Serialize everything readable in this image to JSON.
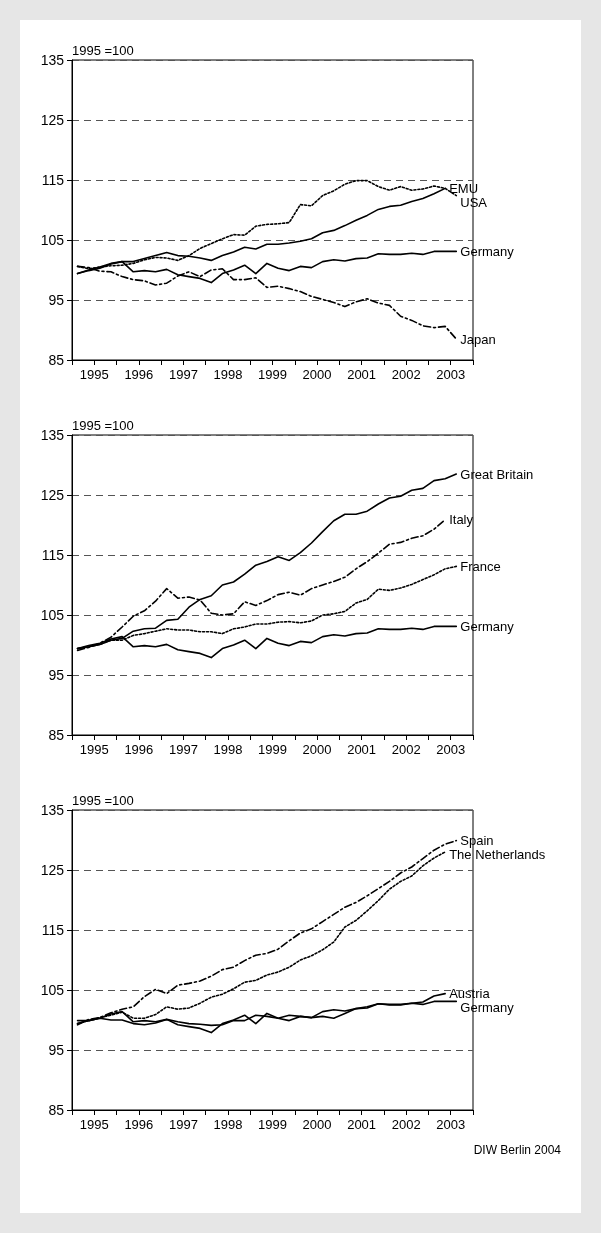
{
  "chart_data": [
    {
      "type": "line",
      "ylabel": "1995 =100",
      "xlim": [
        1995,
        2004
      ],
      "xticks": [
        {
          "value": 1995,
          "label": null
        },
        {
          "value": 1995.5,
          "label": "1995"
        },
        {
          "value": 1996,
          "label": null
        },
        {
          "value": 1996.5,
          "label": "1996"
        },
        {
          "value": 1997,
          "label": null
        },
        {
          "value": 1997.5,
          "label": "1997"
        },
        {
          "value": 1998,
          "label": null
        },
        {
          "value": 1998.5,
          "label": "1998"
        },
        {
          "value": 1999,
          "label": null
        },
        {
          "value": 1999.5,
          "label": "1999"
        },
        {
          "value": 2000,
          "label": null
        },
        {
          "value": 2000.5,
          "label": "2000"
        },
        {
          "value": 2001,
          "label": null
        },
        {
          "value": 2001.5,
          "label": "2001"
        },
        {
          "value": 2002,
          "label": null
        },
        {
          "value": 2002.5,
          "label": "2002"
        },
        {
          "value": 2003,
          "label": null
        },
        {
          "value": 2003.5,
          "label": "2003"
        },
        {
          "value": 2004,
          "label": null
        }
      ],
      "ylim": [
        85,
        135
      ],
      "yticks": [
        85,
        95,
        105,
        115,
        125,
        135
      ],
      "grid": "y",
      "legend": false,
      "marker": "none",
      "x": [
        1995.125,
        1995.375,
        1995.625,
        1995.875,
        1996.125,
        1996.375,
        1996.625,
        1996.875,
        1997.125,
        1997.375,
        1997.625,
        1997.875,
        1998.125,
        1998.375,
        1998.625,
        1998.875,
        1999.125,
        1999.375,
        1999.625,
        1999.875,
        2000.125,
        2000.375,
        2000.625,
        2000.875,
        2001.125,
        2001.375,
        2001.625,
        2001.875,
        2002.125,
        2002.375,
        2002.625,
        2002.875,
        2003.125,
        2003.375,
        2003.625
      ],
      "series": [
        {
          "name": "USA",
          "color": "#000000",
          "line_style": "dotted",
          "values": [
            100.6,
            100.2,
            100.5,
            100.7,
            100.8,
            101.1,
            101.7,
            102.1,
            102,
            101.6,
            102.4,
            103.6,
            104.4,
            105.2,
            105.9,
            105.8,
            107.3,
            107.6,
            107.7,
            107.9,
            110.9,
            110.7,
            112.4,
            113.2,
            114.3,
            114.9,
            114.9,
            113.9,
            113.3,
            113.9,
            113.3,
            113.5,
            114,
            113.6,
            112.4
          ]
        },
        {
          "name": "EMU",
          "color": "#000000",
          "line_style": "solid",
          "values": [
            99.4,
            100,
            100.5,
            101.1,
            101.4,
            101.4,
            101.9,
            102.4,
            102.9,
            102.4,
            102.3,
            102,
            101.6,
            102.4,
            103,
            103.8,
            103.5,
            104.3,
            104.3,
            104.5,
            104.8,
            105.2,
            106.2,
            106.6,
            107.4,
            108.3,
            109.1,
            110.1,
            110.6,
            110.8,
            111.4,
            111.9,
            112.7,
            113.6,
            null
          ]
        },
        {
          "name": "Germany",
          "color": "#000000",
          "line_style": "solid",
          "values": [
            99.4,
            99.9,
            100.3,
            101,
            101.4,
            99.7,
            99.9,
            99.7,
            100.1,
            99.2,
            98.9,
            98.6,
            97.9,
            99.4,
            100,
            100.8,
            99.4,
            101.1,
            100.3,
            99.9,
            100.6,
            100.4,
            101.4,
            101.7,
            101.5,
            101.9,
            102,
            102.7,
            102.6,
            102.6,
            102.8,
            102.6,
            103.1,
            103.1,
            103.1
          ]
        },
        {
          "name": "Japan",
          "color": "#000000",
          "line_style": "dashed",
          "values": [
            100.6,
            100.4,
            99.8,
            99.7,
            98.9,
            98.4,
            98.2,
            97.5,
            97.8,
            99,
            99.7,
            98.9,
            100,
            100.2,
            98.4,
            98.4,
            98.7,
            97.1,
            97.3,
            96.9,
            96.4,
            95.6,
            95.1,
            94.6,
            93.9,
            94.7,
            95.2,
            94.5,
            94.1,
            92.3,
            91.6,
            90.7,
            90.4,
            90.6,
            88.5
          ]
        }
      ]
    },
    {
      "type": "line",
      "ylabel": "1995 =100",
      "xlim": [
        1995,
        2004
      ],
      "xticks": [
        {
          "value": 1995,
          "label": null
        },
        {
          "value": 1995.5,
          "label": "1995"
        },
        {
          "value": 1996,
          "label": null
        },
        {
          "value": 1996.5,
          "label": "1996"
        },
        {
          "value": 1997,
          "label": null
        },
        {
          "value": 1997.5,
          "label": "1997"
        },
        {
          "value": 1998,
          "label": null
        },
        {
          "value": 1998.5,
          "label": "1998"
        },
        {
          "value": 1999,
          "label": null
        },
        {
          "value": 1999.5,
          "label": "1999"
        },
        {
          "value": 2000,
          "label": null
        },
        {
          "value": 2000.5,
          "label": "2000"
        },
        {
          "value": 2001,
          "label": null
        },
        {
          "value": 2001.5,
          "label": "2001"
        },
        {
          "value": 2002,
          "label": null
        },
        {
          "value": 2002.5,
          "label": "2002"
        },
        {
          "value": 2003,
          "label": null
        },
        {
          "value": 2003.5,
          "label": "2003"
        },
        {
          "value": 2004,
          "label": null
        }
      ],
      "ylim": [
        85,
        135
      ],
      "yticks": [
        85,
        95,
        105,
        115,
        125,
        135
      ],
      "grid": "y",
      "legend": false,
      "marker": "none",
      "x": [
        1995.125,
        1995.375,
        1995.625,
        1995.875,
        1996.125,
        1996.375,
        1996.625,
        1996.875,
        1997.125,
        1997.375,
        1997.625,
        1997.875,
        1998.125,
        1998.375,
        1998.625,
        1998.875,
        1999.125,
        1999.375,
        1999.625,
        1999.875,
        2000.125,
        2000.375,
        2000.625,
        2000.875,
        2001.125,
        2001.375,
        2001.625,
        2001.875,
        2002.125,
        2002.375,
        2002.625,
        2002.875,
        2003.125,
        2003.375,
        2003.625
      ],
      "series": [
        {
          "name": "Great Britain",
          "color": "#000000",
          "line_style": "solid",
          "values": [
            99.4,
            99.7,
            100.1,
            100.8,
            101.1,
            102.3,
            102.7,
            102.8,
            104.1,
            104.3,
            106.3,
            107.6,
            108.2,
            110,
            110.5,
            111.8,
            113.3,
            113.9,
            114.7,
            114.1,
            115.4,
            117,
            118.9,
            120.7,
            121.8,
            121.8,
            122.3,
            123.5,
            124.5,
            124.8,
            125.8,
            126.1,
            127.4,
            127.7,
            128.5
          ]
        },
        {
          "name": "Italy",
          "color": "#000000",
          "line_style": "dashed",
          "values": [
            99.1,
            99.6,
            100.3,
            101.3,
            103,
            104.8,
            105.7,
            107.3,
            109.4,
            107.8,
            108,
            107.5,
            105.3,
            105,
            105.2,
            107.2,
            106.6,
            107.4,
            108.4,
            108.8,
            108.3,
            109.4,
            110,
            110.6,
            111.3,
            112.7,
            113.9,
            115.3,
            116.8,
            117.1,
            117.8,
            118.2,
            119.3,
            120.9,
            null
          ]
        },
        {
          "name": "France",
          "color": "#000000",
          "line_style": "dotted",
          "values": [
            99.4,
            99.7,
            100.1,
            100.8,
            100.8,
            101.6,
            101.9,
            102.3,
            102.7,
            102.5,
            102.5,
            102.2,
            102.2,
            101.9,
            102.7,
            103,
            103.5,
            103.5,
            103.8,
            103.9,
            103.7,
            104,
            105,
            105.2,
            105.6,
            107,
            107.6,
            109.3,
            109.1,
            109.5,
            110.1,
            110.9,
            111.7,
            112.7,
            113.1
          ]
        },
        {
          "name": "Germany",
          "color": "#000000",
          "line_style": "solid",
          "values": [
            99.4,
            99.9,
            100.3,
            101,
            101.4,
            99.7,
            99.9,
            99.7,
            100.1,
            99.2,
            98.9,
            98.6,
            97.9,
            99.4,
            100,
            100.8,
            99.4,
            101.1,
            100.3,
            99.9,
            100.6,
            100.4,
            101.4,
            101.7,
            101.5,
            101.9,
            102,
            102.7,
            102.6,
            102.6,
            102.8,
            102.6,
            103.1,
            103.1,
            103.1
          ]
        }
      ]
    },
    {
      "type": "line",
      "ylabel": "1995 =100",
      "xlim": [
        1995,
        2004
      ],
      "xticks": [
        {
          "value": 1995,
          "label": null
        },
        {
          "value": 1995.5,
          "label": "1995"
        },
        {
          "value": 1996,
          "label": null
        },
        {
          "value": 1996.5,
          "label": "1996"
        },
        {
          "value": 1997,
          "label": null
        },
        {
          "value": 1997.5,
          "label": "1997"
        },
        {
          "value": 1998,
          "label": null
        },
        {
          "value": 1998.5,
          "label": "1998"
        },
        {
          "value": 1999,
          "label": null
        },
        {
          "value": 1999.5,
          "label": "1999"
        },
        {
          "value": 2000,
          "label": null
        },
        {
          "value": 2000.5,
          "label": "2000"
        },
        {
          "value": 2001,
          "label": null
        },
        {
          "value": 2001.5,
          "label": "2001"
        },
        {
          "value": 2002,
          "label": null
        },
        {
          "value": 2002.5,
          "label": "2002"
        },
        {
          "value": 2003,
          "label": null
        },
        {
          "value": 2003.5,
          "label": "2003"
        },
        {
          "value": 2004,
          "label": null
        }
      ],
      "ylim": [
        85,
        135
      ],
      "yticks": [
        85,
        95,
        105,
        115,
        125,
        135
      ],
      "grid": "y",
      "legend": false,
      "marker": "none",
      "annotations": [
        "DIW Berlin 2004"
      ],
      "x": [
        1995.125,
        1995.375,
        1995.625,
        1995.875,
        1996.125,
        1996.375,
        1996.625,
        1996.875,
        1997.125,
        1997.375,
        1997.625,
        1997.875,
        1998.125,
        1998.375,
        1998.625,
        1998.875,
        1999.125,
        1999.375,
        1999.625,
        1999.875,
        2000.125,
        2000.375,
        2000.625,
        2000.875,
        2001.125,
        2001.375,
        2001.625,
        2001.875,
        2002.125,
        2002.375,
        2002.625,
        2002.875,
        2003.125,
        2003.375,
        2003.625
      ],
      "series": [
        {
          "name": "Spain",
          "color": "#000000",
          "line_style": "dashed",
          "values": [
            99.2,
            100.1,
            100.4,
            101.2,
            101.8,
            102.2,
            103.9,
            105.1,
            104.4,
            105.8,
            106.1,
            106.5,
            107.3,
            108.4,
            108.8,
            109.9,
            110.8,
            111.1,
            111.8,
            113.2,
            114.5,
            115.2,
            116.4,
            117.6,
            118.8,
            119.6,
            120.7,
            121.9,
            123.1,
            124.5,
            125.5,
            126.9,
            128.3,
            129.3,
            129.9
          ]
        },
        {
          "name": "The Netherlands",
          "color": "#000000",
          "line_style": "dotted",
          "values": [
            99.4,
            99.9,
            100.4,
            100.8,
            101.3,
            100.3,
            100.3,
            100.9,
            102.2,
            101.8,
            102,
            102.8,
            103.8,
            104.3,
            105.2,
            106.3,
            106.6,
            107.5,
            108,
            108.8,
            110,
            110.7,
            111.7,
            113,
            115.5,
            116.6,
            118.2,
            119.9,
            121.8,
            123.1,
            124,
            125.7,
            127,
            128,
            null
          ]
        },
        {
          "name": "Germany",
          "color": "#000000",
          "line_style": "solid",
          "values": [
            99.4,
            99.9,
            100.3,
            101,
            101.4,
            99.7,
            99.9,
            99.7,
            100.1,
            99.2,
            98.9,
            98.6,
            97.9,
            99.4,
            100,
            100.8,
            99.4,
            101.1,
            100.3,
            99.9,
            100.6,
            100.4,
            101.4,
            101.7,
            101.5,
            101.9,
            102,
            102.7,
            102.6,
            102.6,
            102.8,
            102.6,
            103.1,
            103.1,
            103.1
          ]
        },
        {
          "name": "Austria",
          "color": "#000000",
          "line_style": "solid",
          "values": [
            99.9,
            99.9,
            100.3,
            100,
            100,
            99.4,
            99.2,
            99.5,
            100.1,
            99.7,
            99.4,
            99.3,
            99.1,
            99.2,
            99.9,
            99.9,
            100.8,
            100.6,
            100.3,
            100.8,
            100.6,
            100.4,
            100.6,
            100.3,
            101.1,
            101.9,
            102.2,
            102.7,
            102.5,
            102.5,
            102.8,
            103,
            104,
            104.4,
            null
          ]
        }
      ]
    }
  ]
}
